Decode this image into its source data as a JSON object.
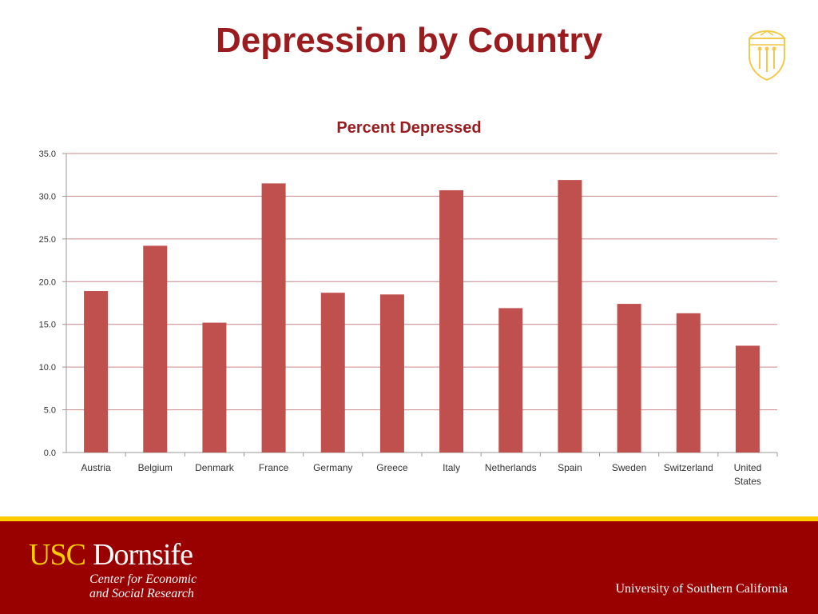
{
  "slide": {
    "title": "Depression by Country"
  },
  "footer": {
    "brand_usc": "USC",
    "brand_dornsife": "Dornsife",
    "center_line_1": "Center for Economic",
    "center_line_2": "and Social Research",
    "university": "University of Southern California"
  },
  "colors": {
    "title": "#9b1c1f",
    "bar": "#c0504d",
    "footer_bg": "#990000",
    "gold": "#ffcc00",
    "grid": "#c9878a"
  },
  "icons": {
    "seal": "usc-seal-icon"
  },
  "chart_data": {
    "type": "bar",
    "title": "Percent Depressed",
    "xlabel": "",
    "ylabel": "",
    "categories": [
      "Austria",
      "Belgium",
      "Denmark",
      "France",
      "Germany",
      "Greece",
      "Italy",
      "Netherlands",
      "Spain",
      "Sweden",
      "Switzerland",
      "United States"
    ],
    "values": [
      18.9,
      24.2,
      15.2,
      31.5,
      18.7,
      18.5,
      30.7,
      16.9,
      31.9,
      17.4,
      16.3,
      12.5
    ],
    "ylim": [
      0,
      35
    ],
    "yticks": [
      "0.0",
      "5.0",
      "10.0",
      "15.0",
      "20.0",
      "25.0",
      "30.0",
      "35.0"
    ],
    "grid": true,
    "legend": false
  }
}
